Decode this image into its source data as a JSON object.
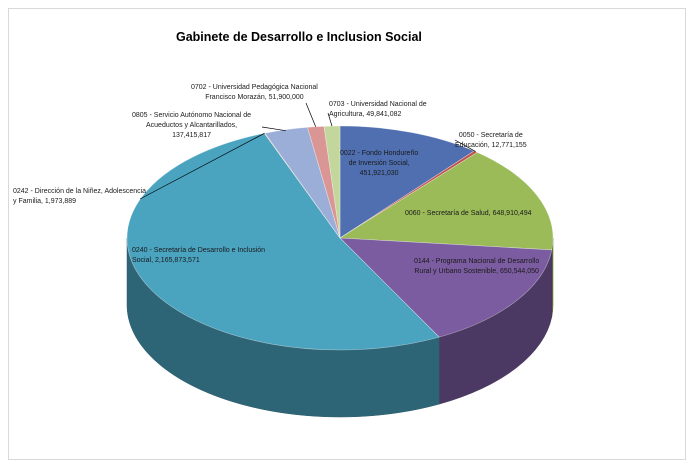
{
  "chart_data": {
    "type": "pie",
    "style": "3d",
    "title": "Gabinete de Desarrollo e Inclusion Social",
    "legend": "none",
    "slices": [
      {
        "label": "0022 - Fondo Hondureño de Inversión Social,",
        "value_text": "451,921,030",
        "value": 451921030,
        "color": "#4f6fb0"
      },
      {
        "label": "0050 - Secretaría de Educación,",
        "value_text": "12,771,155",
        "value": 12771155,
        "color": "#c0504d"
      },
      {
        "label": "0060 - Secretaría de Salud,",
        "value_text": "648,910,494",
        "value": 648910494,
        "color": "#9bbb59"
      },
      {
        "label": "0144 - Programa Nacional de Desarrollo Rural y Urbano Sostenible,",
        "value_text": "650,544,050",
        "value": 650544050,
        "color": "#7b5ca0"
      },
      {
        "label": "0240 - Secretaría de Desarrollo e Inclusión Social,",
        "value_text": "2,165,873,571",
        "value": 2165873571,
        "color": "#4aa3bf"
      },
      {
        "label": "0242 - Dirección de la Niñez, Adolescencia y Familia,",
        "value_text": "1,973,889",
        "value": 1973889,
        "color": "#f39c4a"
      },
      {
        "label": "0805 - Servicio Autónomo Nacional de Acueductos y Alcantarillados,",
        "value_text": "137,415,817",
        "value": 137415817,
        "color": "#9aaed8"
      },
      {
        "label": "0702 - Universidad Pedagógica Nacional Francisco Morazán,",
        "value_text": "51,900,000",
        "value": 51900000,
        "color": "#d99694"
      },
      {
        "label": "0703 - Universidad Nacional de Agricultura,",
        "value_text": "49,841,082",
        "value": 49841082,
        "color": "#c3d69b"
      }
    ]
  }
}
